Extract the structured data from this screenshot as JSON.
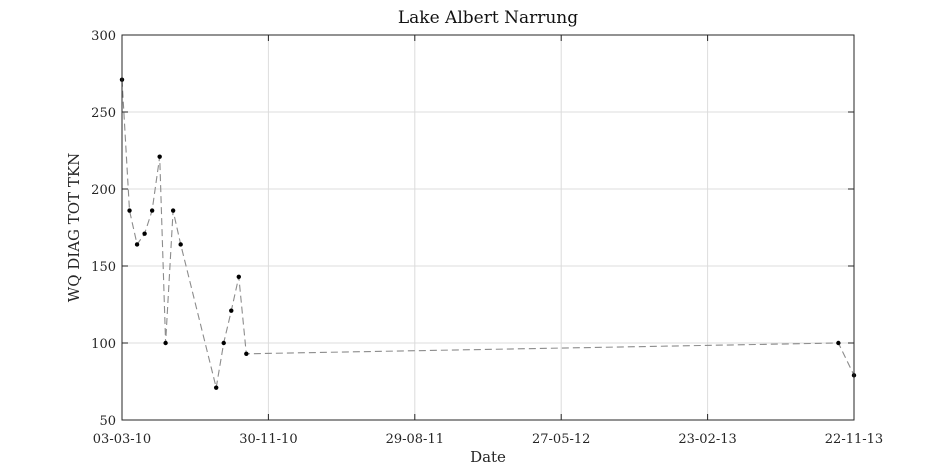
{
  "chart_data": {
    "type": "line",
    "title": "Lake Albert Narrung",
    "xlabel": "Date",
    "ylabel": "WQ DIAG TOT TKN",
    "x_ticks": [
      "03-03-10",
      "30-11-10",
      "29-08-11",
      "27-05-12",
      "23-02-13",
      "22-11-13"
    ],
    "xlim": [
      "2010-03-03",
      "2013-11-22"
    ],
    "y_ticks": [
      50,
      100,
      150,
      200,
      250,
      300
    ],
    "ylim": [
      50,
      300
    ],
    "grid": true,
    "line_style": "dashed",
    "colors": {
      "line": "#8c8c8c",
      "marker": "#000000",
      "grid": "#dcdcdc",
      "axis": "#262626"
    },
    "series": [
      {
        "x": [
          "2010-03-03",
          "2010-03-17",
          "2010-03-31",
          "2010-04-14",
          "2010-04-28",
          "2010-05-12",
          "2010-05-23",
          "2010-06-06",
          "2010-06-20",
          "2010-08-25",
          "2010-09-08",
          "2010-09-22",
          "2010-10-06",
          "2010-10-20",
          "2013-10-24",
          "2013-11-22"
        ],
        "values": [
          271,
          186,
          164,
          171,
          186,
          221,
          100,
          186,
          164,
          71,
          100,
          121,
          143,
          93,
          100,
          79
        ]
      }
    ]
  }
}
